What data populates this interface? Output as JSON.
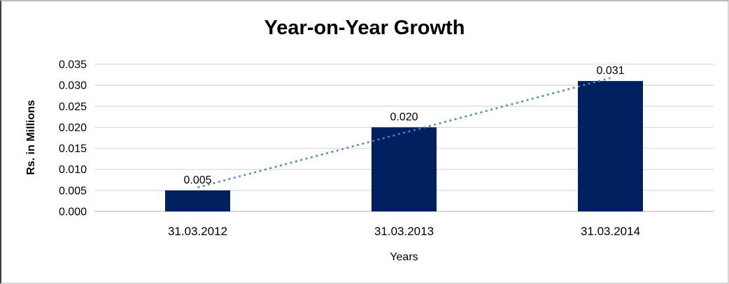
{
  "chart_data": {
    "type": "bar",
    "title": "Year-on-Year Growth",
    "xlabel": "Years",
    "ylabel": "Rs. in Millions",
    "categories": [
      "31.03.2012",
      "31.03.2013",
      "31.03.2014"
    ],
    "values": [
      0.005,
      0.02,
      0.031
    ],
    "data_labels": [
      "0.005",
      "0.020",
      "0.031"
    ],
    "ylim": [
      0,
      0.035
    ],
    "ytick_step": 0.005,
    "ytick_decimals": 3,
    "grid": true,
    "legend": "none",
    "bar_color": "#002060",
    "gridline_color": "#d9d9d9",
    "baseline_color": "#bfbfbf",
    "text_color": "#000000",
    "trendline": {
      "type": "linear",
      "style": "dotted",
      "color": "#4a86c8",
      "endpoint_values": [
        0.0057,
        0.0317
      ]
    }
  }
}
